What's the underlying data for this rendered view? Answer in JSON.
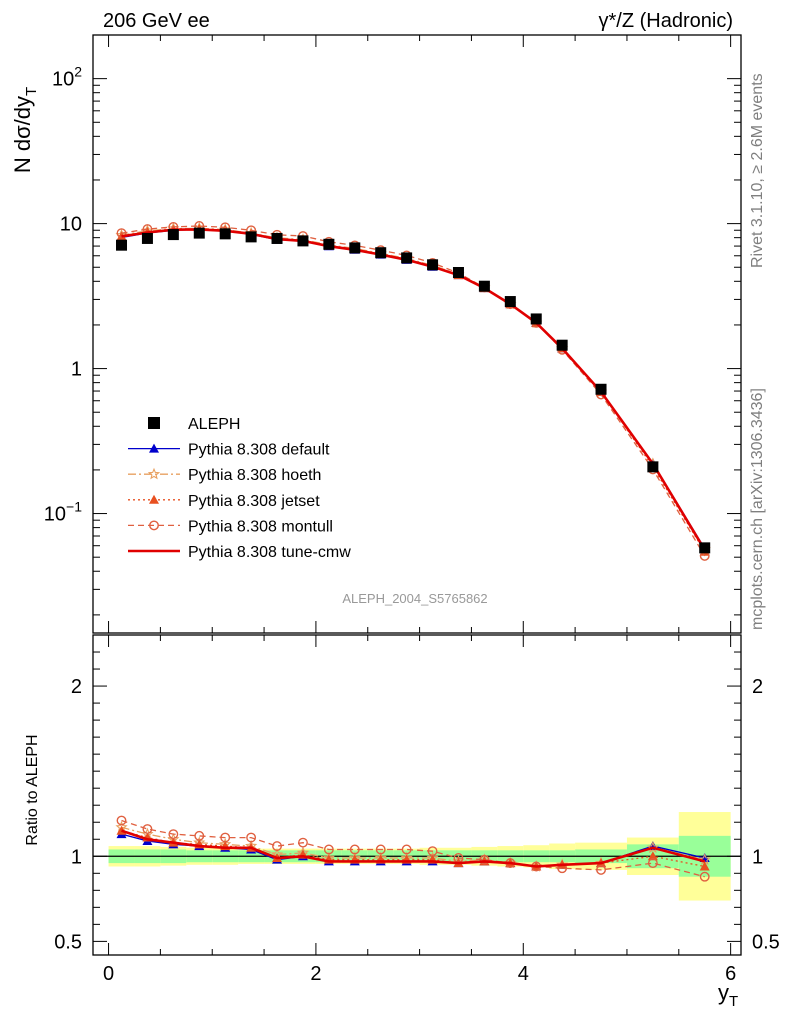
{
  "header": {
    "left": "206 GeV ee",
    "right_base": "γ*/Z (Hadronic)"
  },
  "labels": {
    "main_ylabel": "N dσ/dy",
    "main_ylabel_sub": "T",
    "ratio_ylabel": "Ratio to ALEPH",
    "xlabel": "y",
    "xlabel_sub": "T",
    "analysis_tag": "ALEPH_2004_S5765862",
    "rivet_info": "Rivet 3.1.10, ≥ 2.6M events",
    "mcplots_info": "mcplots.cern.ch [arXiv:1306.3436]"
  },
  "legend": [
    {
      "key": "data",
      "label": "ALEPH"
    },
    {
      "key": "default",
      "label": "Pythia 8.308 default"
    },
    {
      "key": "hoeth",
      "label": "Pythia 8.308 hoeth"
    },
    {
      "key": "jetset",
      "label": "Pythia 8.308 jetset"
    },
    {
      "key": "montull",
      "label": "Pythia 8.308 montull"
    },
    {
      "key": "cmw",
      "label": "Pythia 8.308 tune-cmw"
    }
  ],
  "colors": {
    "data": "#000000",
    "default": "#0000cc",
    "hoeth": "#e8a060",
    "jetset": "#e85020",
    "montull": "#e06040",
    "cmw": "#e00000",
    "band_inner": "#99ff99",
    "band_outer": "#ffff99"
  },
  "chart_data": {
    "type": "line",
    "xlim": [
      -0.15,
      6.1
    ],
    "main_ylim": [
      0.015,
      200
    ],
    "main_yscale": "log",
    "ratio_ylim": [
      0.42,
      2.3
    ],
    "x_ticks": [
      "0",
      "2",
      "4",
      "6"
    ],
    "x_tick_values": [
      0,
      2,
      4,
      6
    ],
    "main_y_ticks": [
      {
        "v": 100,
        "base": "10",
        "exp": "2"
      },
      {
        "v": 10,
        "base": "10",
        "exp": ""
      },
      {
        "v": 1,
        "base": "1",
        "exp": ""
      },
      {
        "v": 0.1,
        "base": "10",
        "exp": "−1"
      }
    ],
    "ratio_y_ticks": [
      {
        "v": 0.5,
        "label": "0.5"
      },
      {
        "v": 1,
        "label": "1"
      },
      {
        "v": 2,
        "label": "2"
      }
    ],
    "x": [
      0.125,
      0.375,
      0.625,
      0.875,
      1.125,
      1.375,
      1.625,
      1.875,
      2.125,
      2.375,
      2.625,
      2.875,
      3.125,
      3.375,
      3.625,
      3.875,
      4.125,
      4.375,
      4.75,
      5.25,
      5.75
    ],
    "bins": [
      0,
      0.25,
      0.5,
      0.75,
      1.0,
      1.25,
      1.5,
      1.75,
      2.0,
      2.25,
      2.5,
      2.75,
      3.0,
      3.25,
      3.5,
      3.75,
      4.0,
      4.25,
      4.5,
      5.0,
      5.5,
      6.0
    ],
    "data_values": [
      7.1,
      7.9,
      8.4,
      8.6,
      8.5,
      8.1,
      7.9,
      7.6,
      7.2,
      6.8,
      6.3,
      5.8,
      5.2,
      4.6,
      3.7,
      2.9,
      2.2,
      1.45,
      0.72,
      0.21,
      0.058
    ],
    "band_inner": [
      0.04,
      0.04,
      0.04,
      0.035,
      0.035,
      0.035,
      0.035,
      0.035,
      0.035,
      0.035,
      0.035,
      0.035,
      0.035,
      0.035,
      0.035,
      0.035,
      0.035,
      0.035,
      0.04,
      0.07,
      0.12
    ],
    "band_outer": [
      0.06,
      0.06,
      0.055,
      0.05,
      0.05,
      0.045,
      0.045,
      0.045,
      0.045,
      0.045,
      0.045,
      0.045,
      0.05,
      0.05,
      0.055,
      0.06,
      0.065,
      0.075,
      0.08,
      0.11,
      0.26
    ],
    "series": [
      {
        "name": "Pythia 8.308 default",
        "key": "default",
        "style": "solid",
        "marker": "triangle",
        "ratio": [
          1.13,
          1.09,
          1.07,
          1.06,
          1.05,
          1.04,
          0.98,
          1.0,
          0.97,
          0.97,
          0.97,
          0.97,
          0.97,
          0.96,
          0.97,
          0.96,
          0.94,
          0.95,
          0.96,
          1.06,
          0.99
        ]
      },
      {
        "name": "Pythia 8.308 hoeth",
        "key": "hoeth",
        "style": "dashdot",
        "marker": "star",
        "ratio": [
          1.17,
          1.13,
          1.1,
          1.08,
          1.07,
          1.06,
          1.01,
          1.02,
          0.99,
          0.99,
          0.99,
          0.99,
          0.99,
          0.97,
          0.98,
          0.96,
          0.94,
          0.95,
          0.96,
          1.05,
          0.98
        ]
      },
      {
        "name": "Pythia 8.308 jetset",
        "key": "jetset",
        "style": "dotted",
        "marker": "triangle",
        "ratio": [
          1.15,
          1.11,
          1.08,
          1.07,
          1.06,
          1.05,
          0.99,
          1.01,
          0.98,
          0.98,
          0.98,
          0.98,
          0.98,
          0.96,
          0.97,
          0.96,
          0.94,
          0.95,
          0.96,
          1.0,
          0.94
        ]
      },
      {
        "name": "Pythia 8.308 montull",
        "key": "montull",
        "style": "dashed",
        "marker": "circle",
        "ratio": [
          1.21,
          1.16,
          1.13,
          1.12,
          1.11,
          1.11,
          1.06,
          1.08,
          1.04,
          1.04,
          1.04,
          1.04,
          1.03,
          0.99,
          0.98,
          0.96,
          0.94,
          0.93,
          0.92,
          0.96,
          0.88
        ]
      },
      {
        "name": "Pythia 8.308 tune-cmw",
        "key": "cmw",
        "style": "solid-thick",
        "marker": "none",
        "ratio": [
          1.15,
          1.1,
          1.08,
          1.06,
          1.05,
          1.05,
          0.99,
          1.0,
          0.97,
          0.97,
          0.97,
          0.97,
          0.97,
          0.96,
          0.97,
          0.96,
          0.94,
          0.95,
          0.96,
          1.05,
          0.97
        ]
      }
    ]
  }
}
